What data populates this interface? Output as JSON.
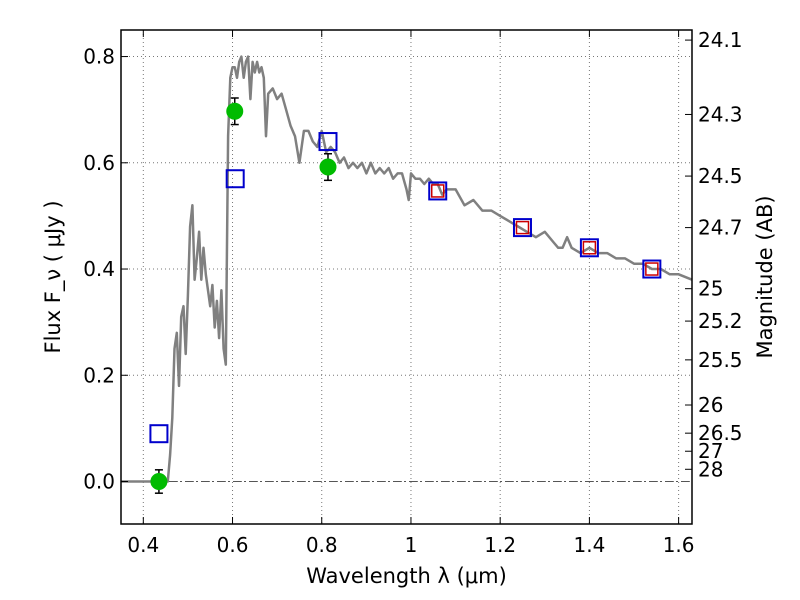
{
  "chart_data": {
    "type": "scatter",
    "xlabel": "Wavelength  λ (μm)",
    "ylabel": "Flux  F_ν  ( μJy )",
    "ylabel_right": "Magnitude (AB)",
    "xlim": [
      0.35,
      1.63
    ],
    "ylim": [
      -0.08,
      0.85
    ],
    "grid": true,
    "x_ticks": [
      0.4,
      0.6,
      0.8,
      1.0,
      1.2,
      1.4,
      1.6
    ],
    "x_tick_labels": [
      "0.4",
      "0.6",
      "0.8",
      "1",
      "1.2",
      "1.4",
      "1.6"
    ],
    "y_ticks": [
      0.0,
      0.2,
      0.4,
      0.6,
      0.8
    ],
    "y_tick_labels": [
      "0.0",
      "0.2",
      "0.4",
      "0.6",
      "0.8"
    ],
    "right_ticks": [
      {
        "flux": 0.831,
        "label": "24.1"
      },
      {
        "flux": 0.691,
        "label": "24.3"
      },
      {
        "flux": 0.575,
        "label": "24.5"
      },
      {
        "flux": 0.478,
        "label": "24.7"
      },
      {
        "flux": 0.363,
        "label": "25"
      },
      {
        "flux": 0.302,
        "label": "25.2"
      },
      {
        "flux": 0.229,
        "label": "25.5"
      },
      {
        "flux": 0.144,
        "label": "26"
      },
      {
        "flux": 0.091,
        "label": "26.5"
      },
      {
        "flux": 0.057,
        "label": "27"
      },
      {
        "flux": 0.023,
        "label": "28"
      }
    ],
    "zero_line": 0.0,
    "colors": {
      "model_line": "#808080",
      "observed": "#00bb00",
      "model_box": "#0000cc",
      "model_box_inner": "#cc0000",
      "grid": "#777777",
      "axis": "#000000"
    },
    "series": [
      {
        "name": "model spectrum",
        "kind": "line",
        "x": [
          0.35,
          0.4,
          0.42,
          0.44,
          0.455,
          0.46,
          0.465,
          0.47,
          0.475,
          0.48,
          0.485,
          0.49,
          0.495,
          0.5,
          0.505,
          0.51,
          0.515,
          0.52,
          0.525,
          0.53,
          0.535,
          0.54,
          0.545,
          0.55,
          0.555,
          0.56,
          0.565,
          0.57,
          0.575,
          0.58,
          0.585,
          0.59,
          0.595,
          0.6,
          0.605,
          0.61,
          0.615,
          0.62,
          0.625,
          0.63,
          0.635,
          0.64,
          0.645,
          0.65,
          0.655,
          0.66,
          0.665,
          0.67,
          0.675,
          0.68,
          0.69,
          0.7,
          0.71,
          0.72,
          0.73,
          0.74,
          0.75,
          0.76,
          0.77,
          0.78,
          0.79,
          0.8,
          0.81,
          0.82,
          0.83,
          0.84,
          0.85,
          0.86,
          0.87,
          0.88,
          0.89,
          0.9,
          0.91,
          0.92,
          0.93,
          0.94,
          0.95,
          0.96,
          0.97,
          0.98,
          0.99,
          0.995,
          1.0,
          1.01,
          1.02,
          1.03,
          1.04,
          1.05,
          1.06,
          1.07,
          1.08,
          1.09,
          1.1,
          1.12,
          1.14,
          1.16,
          1.18,
          1.2,
          1.22,
          1.24,
          1.26,
          1.28,
          1.3,
          1.32,
          1.33,
          1.34,
          1.35,
          1.36,
          1.38,
          1.4,
          1.42,
          1.44,
          1.46,
          1.48,
          1.5,
          1.52,
          1.54,
          1.56,
          1.58,
          1.6,
          1.63
        ],
        "y": [
          0.0,
          0.0,
          0.0,
          0.0,
          0.0,
          0.05,
          0.12,
          0.25,
          0.28,
          0.18,
          0.31,
          0.33,
          0.24,
          0.35,
          0.48,
          0.52,
          0.38,
          0.42,
          0.47,
          0.38,
          0.44,
          0.39,
          0.36,
          0.33,
          0.37,
          0.29,
          0.34,
          0.27,
          0.36,
          0.25,
          0.22,
          0.65,
          0.76,
          0.78,
          0.78,
          0.76,
          0.79,
          0.8,
          0.76,
          0.79,
          0.8,
          0.72,
          0.79,
          0.77,
          0.79,
          0.77,
          0.78,
          0.76,
          0.65,
          0.73,
          0.74,
          0.72,
          0.73,
          0.7,
          0.67,
          0.65,
          0.6,
          0.66,
          0.66,
          0.64,
          0.63,
          0.66,
          0.62,
          0.63,
          0.62,
          0.6,
          0.61,
          0.59,
          0.6,
          0.59,
          0.6,
          0.58,
          0.6,
          0.58,
          0.59,
          0.58,
          0.59,
          0.57,
          0.58,
          0.58,
          0.55,
          0.53,
          0.58,
          0.57,
          0.57,
          0.56,
          0.57,
          0.56,
          0.56,
          0.54,
          0.55,
          0.55,
          0.55,
          0.52,
          0.53,
          0.51,
          0.51,
          0.5,
          0.49,
          0.48,
          0.47,
          0.46,
          0.47,
          0.45,
          0.44,
          0.44,
          0.46,
          0.44,
          0.43,
          0.44,
          0.43,
          0.43,
          0.42,
          0.42,
          0.41,
          0.41,
          0.4,
          0.4,
          0.39,
          0.39,
          0.38
        ]
      },
      {
        "name": "observed photometry",
        "kind": "points_errorbar",
        "x": [
          0.435,
          0.605,
          0.814
        ],
        "y": [
          0.0,
          0.697,
          0.592
        ],
        "yerr": [
          0.022,
          0.025,
          0.025
        ]
      },
      {
        "name": "model photometry",
        "kind": "open_squares",
        "x": [
          0.435,
          0.606,
          0.814,
          1.06,
          1.25,
          1.4,
          1.54
        ],
        "y": [
          0.09,
          0.57,
          0.64,
          0.547,
          0.478,
          0.44,
          0.4
        ]
      },
      {
        "name": "model photometry inner",
        "kind": "open_squares_inner",
        "x": [
          1.06,
          1.25,
          1.4,
          1.54
        ],
        "y": [
          0.547,
          0.478,
          0.44,
          0.4
        ]
      }
    ]
  }
}
